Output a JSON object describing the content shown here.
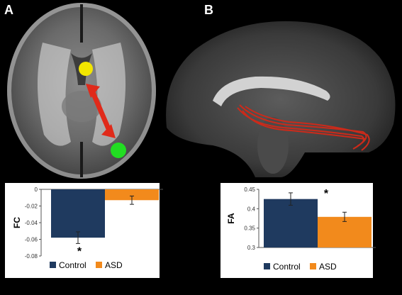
{
  "panels": {
    "a": {
      "letter": "A"
    },
    "b": {
      "letter": "B"
    }
  },
  "colors": {
    "background": "#000000",
    "control": "#1f3a5f",
    "asd": "#f28a1c",
    "marker_frontal": "#f2e600",
    "marker_posterior": "#22dd22",
    "arrow": "#e02a1a",
    "tract": "#cc2a1a"
  },
  "chart_data": [
    {
      "type": "bar",
      "panel": "A",
      "categories": [
        "Control",
        "ASD"
      ],
      "values": [
        -0.058,
        -0.013
      ],
      "error": [
        0.007,
        0.005
      ],
      "ylabel": "FC",
      "ylim": [
        -0.08,
        0
      ],
      "yticks": [
        0,
        -0.02,
        -0.04,
        -0.06,
        -0.08
      ],
      "ytick_labels": [
        "0",
        "-0.02",
        "-0.04",
        "-0.06",
        "-0.08"
      ],
      "significance_label": "*",
      "legend_position": "bottom",
      "grid": false
    },
    {
      "type": "bar",
      "panel": "B",
      "categories": [
        "Control",
        "ASD"
      ],
      "values": [
        0.425,
        0.379
      ],
      "error": [
        0.016,
        0.012
      ],
      "ylabel": "FA",
      "ylim": [
        0.3,
        0.45
      ],
      "yticks": [
        0.3,
        0.35,
        0.4,
        0.45
      ],
      "ytick_labels": [
        "0.3",
        "0.35",
        "0.4",
        "0.45"
      ],
      "significance_label": "*",
      "legend_position": "bottom",
      "grid": false
    }
  ]
}
